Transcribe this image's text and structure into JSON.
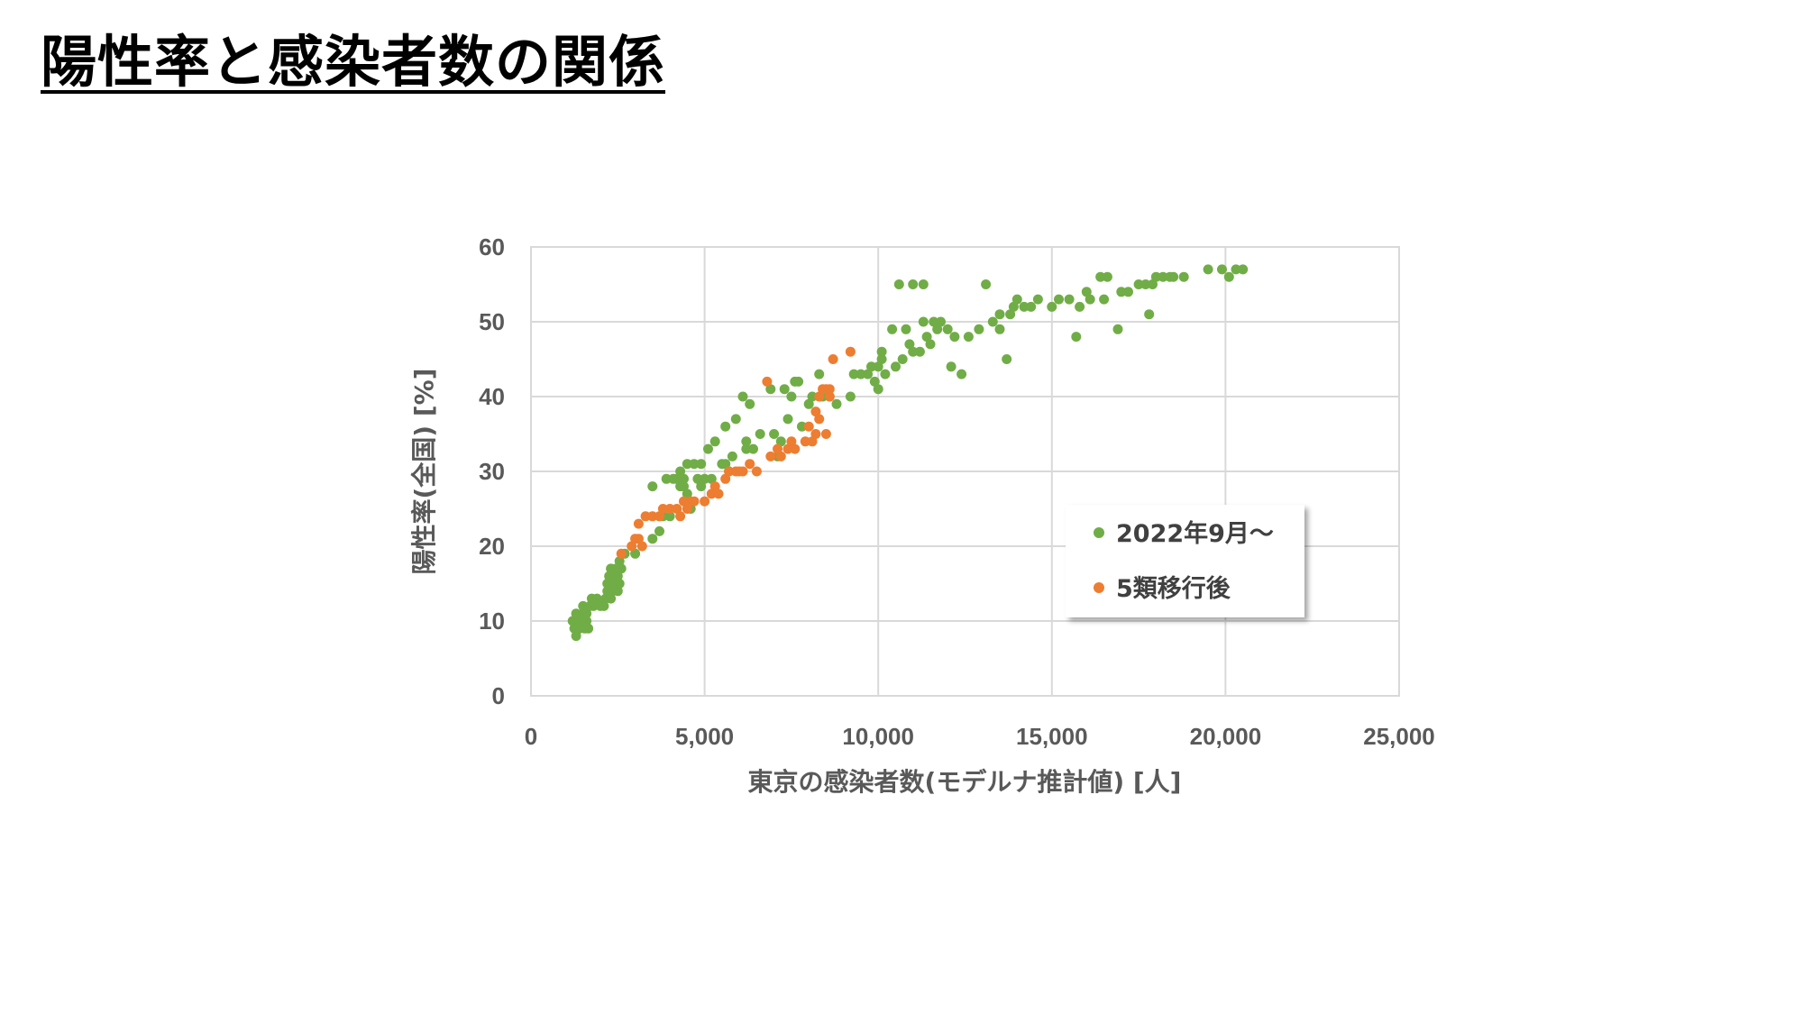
{
  "slide": {
    "title": "陽性率と感染者数の関係"
  },
  "colors": {
    "series_green": "#70AD47",
    "series_orange": "#ED7D31",
    "grid": "#D9D9D9",
    "axis_text": "#595959"
  },
  "chart_data": {
    "type": "scatter",
    "title": "",
    "xlabel": "東京の感染者数(モデルナ推計値) [人]",
    "ylabel": "陽性率(全国) [%]",
    "xlim": [
      0,
      25000
    ],
    "ylim": [
      0,
      60
    ],
    "xticks": [
      0,
      5000,
      10000,
      15000,
      20000,
      25000
    ],
    "xtick_labels": [
      "0",
      "5,000",
      "10,000",
      "15,000",
      "20,000",
      "25,000"
    ],
    "yticks": [
      0,
      10,
      20,
      30,
      40,
      50,
      60
    ],
    "ytick_labels": [
      "0",
      "10",
      "20",
      "30",
      "40",
      "50",
      "60"
    ],
    "grid": true,
    "legend_position": "right-center",
    "series": [
      {
        "name": "2022年9月～",
        "color": "#70AD47",
        "points": [
          [
            1200,
            10
          ],
          [
            1250,
            9
          ],
          [
            1300,
            11
          ],
          [
            1300,
            8
          ],
          [
            1350,
            10
          ],
          [
            1400,
            9
          ],
          [
            1450,
            10
          ],
          [
            1500,
            11
          ],
          [
            1500,
            12
          ],
          [
            1550,
            9
          ],
          [
            1600,
            10
          ],
          [
            1600,
            11
          ],
          [
            1650,
            9
          ],
          [
            1700,
            12
          ],
          [
            1750,
            13
          ],
          [
            1800,
            12
          ],
          [
            1900,
            13
          ],
          [
            2000,
            12
          ],
          [
            2100,
            12
          ],
          [
            2150,
            13
          ],
          [
            2200,
            14
          ],
          [
            2200,
            15
          ],
          [
            2250,
            16
          ],
          [
            2300,
            13
          ],
          [
            2300,
            17
          ],
          [
            2350,
            14
          ],
          [
            2400,
            15
          ],
          [
            2400,
            16
          ],
          [
            2450,
            17
          ],
          [
            2500,
            14
          ],
          [
            2500,
            16
          ],
          [
            2550,
            15
          ],
          [
            2550,
            18
          ],
          [
            2600,
            17
          ],
          [
            2700,
            19
          ],
          [
            3000,
            19
          ],
          [
            3500,
            28
          ],
          [
            3500,
            21
          ],
          [
            3700,
            22
          ],
          [
            3800,
            24
          ],
          [
            3900,
            29
          ],
          [
            4000,
            24
          ],
          [
            4100,
            29
          ],
          [
            4200,
            29
          ],
          [
            4300,
            28
          ],
          [
            4300,
            30
          ],
          [
            4400,
            29
          ],
          [
            4400,
            28
          ],
          [
            4500,
            27
          ],
          [
            4500,
            31
          ],
          [
            4600,
            25
          ],
          [
            4700,
            31
          ],
          [
            4800,
            29
          ],
          [
            4900,
            31
          ],
          [
            4900,
            28
          ],
          [
            5000,
            29
          ],
          [
            5100,
            33
          ],
          [
            5200,
            29
          ],
          [
            5300,
            34
          ],
          [
            5500,
            31
          ],
          [
            5600,
            31
          ],
          [
            5600,
            36
          ],
          [
            5700,
            30
          ],
          [
            5800,
            32
          ],
          [
            5900,
            37
          ],
          [
            6100,
            40
          ],
          [
            6200,
            33
          ],
          [
            6200,
            34
          ],
          [
            6300,
            39
          ],
          [
            6400,
            33
          ],
          [
            6600,
            35
          ],
          [
            6900,
            41
          ],
          [
            7000,
            35
          ],
          [
            7100,
            32
          ],
          [
            7200,
            34
          ],
          [
            7300,
            41
          ],
          [
            7400,
            37
          ],
          [
            7500,
            40
          ],
          [
            7600,
            42
          ],
          [
            7700,
            42
          ],
          [
            7800,
            36
          ],
          [
            8000,
            39
          ],
          [
            8100,
            40
          ],
          [
            8300,
            43
          ],
          [
            8400,
            40
          ],
          [
            8600,
            40
          ],
          [
            8800,
            39
          ],
          [
            9200,
            40
          ],
          [
            9300,
            43
          ],
          [
            9500,
            43
          ],
          [
            9700,
            43
          ],
          [
            9800,
            44
          ],
          [
            9900,
            42
          ],
          [
            10000,
            41
          ],
          [
            10000,
            44
          ],
          [
            10100,
            46
          ],
          [
            10100,
            45
          ],
          [
            10200,
            43
          ],
          [
            10400,
            49
          ],
          [
            10500,
            44
          ],
          [
            10600,
            55
          ],
          [
            10700,
            45
          ],
          [
            10800,
            49
          ],
          [
            10900,
            47
          ],
          [
            11000,
            46
          ],
          [
            11000,
            55
          ],
          [
            11200,
            46
          ],
          [
            11300,
            50
          ],
          [
            11300,
            55
          ],
          [
            11400,
            48
          ],
          [
            11500,
            47
          ],
          [
            11600,
            50
          ],
          [
            11700,
            49
          ],
          [
            11800,
            50
          ],
          [
            12000,
            49
          ],
          [
            12100,
            44
          ],
          [
            12200,
            48
          ],
          [
            12400,
            43
          ],
          [
            12600,
            48
          ],
          [
            12900,
            49
          ],
          [
            13100,
            55
          ],
          [
            13300,
            50
          ],
          [
            13500,
            49
          ],
          [
            13500,
            51
          ],
          [
            13700,
            45
          ],
          [
            13800,
            51
          ],
          [
            13900,
            52
          ],
          [
            14000,
            53
          ],
          [
            14200,
            52
          ],
          [
            14400,
            52
          ],
          [
            14600,
            53
          ],
          [
            15000,
            52
          ],
          [
            15200,
            53
          ],
          [
            15500,
            53
          ],
          [
            15700,
            48
          ],
          [
            15800,
            52
          ],
          [
            16000,
            54
          ],
          [
            16100,
            53
          ],
          [
            16400,
            56
          ],
          [
            16500,
            53
          ],
          [
            16600,
            56
          ],
          [
            16900,
            49
          ],
          [
            17000,
            54
          ],
          [
            17200,
            54
          ],
          [
            17500,
            55
          ],
          [
            17700,
            55
          ],
          [
            17800,
            51
          ],
          [
            17900,
            55
          ],
          [
            18000,
            56
          ],
          [
            18200,
            56
          ],
          [
            18400,
            56
          ],
          [
            18500,
            56
          ],
          [
            18800,
            56
          ],
          [
            19500,
            57
          ],
          [
            19900,
            57
          ],
          [
            20100,
            56
          ],
          [
            20300,
            57
          ],
          [
            20500,
            57
          ]
        ]
      },
      {
        "name": "5類移行後",
        "color": "#ED7D31",
        "points": [
          [
            2600,
            19
          ],
          [
            2900,
            20
          ],
          [
            3000,
            21
          ],
          [
            3100,
            21
          ],
          [
            3100,
            23
          ],
          [
            3200,
            20
          ],
          [
            3300,
            24
          ],
          [
            3500,
            24
          ],
          [
            3700,
            24
          ],
          [
            3800,
            25
          ],
          [
            4000,
            25
          ],
          [
            4200,
            25
          ],
          [
            4300,
            24
          ],
          [
            4400,
            26
          ],
          [
            4500,
            25
          ],
          [
            4600,
            26
          ],
          [
            4700,
            26
          ],
          [
            5000,
            26
          ],
          [
            5200,
            27
          ],
          [
            5300,
            28
          ],
          [
            5400,
            27
          ],
          [
            5600,
            29
          ],
          [
            5700,
            30
          ],
          [
            5900,
            30
          ],
          [
            6000,
            30
          ],
          [
            6100,
            30
          ],
          [
            6300,
            31
          ],
          [
            6500,
            30
          ],
          [
            6800,
            42
          ],
          [
            6900,
            32
          ],
          [
            7100,
            33
          ],
          [
            7200,
            32
          ],
          [
            7400,
            33
          ],
          [
            7500,
            34
          ],
          [
            7600,
            33
          ],
          [
            7900,
            34
          ],
          [
            8000,
            36
          ],
          [
            8100,
            34
          ],
          [
            8200,
            35
          ],
          [
            8200,
            38
          ],
          [
            8300,
            37
          ],
          [
            8300,
            40
          ],
          [
            8400,
            41
          ],
          [
            8500,
            41
          ],
          [
            8500,
            35
          ],
          [
            8600,
            40
          ],
          [
            8600,
            41
          ],
          [
            8700,
            45
          ],
          [
            9200,
            46
          ]
        ]
      }
    ]
  }
}
